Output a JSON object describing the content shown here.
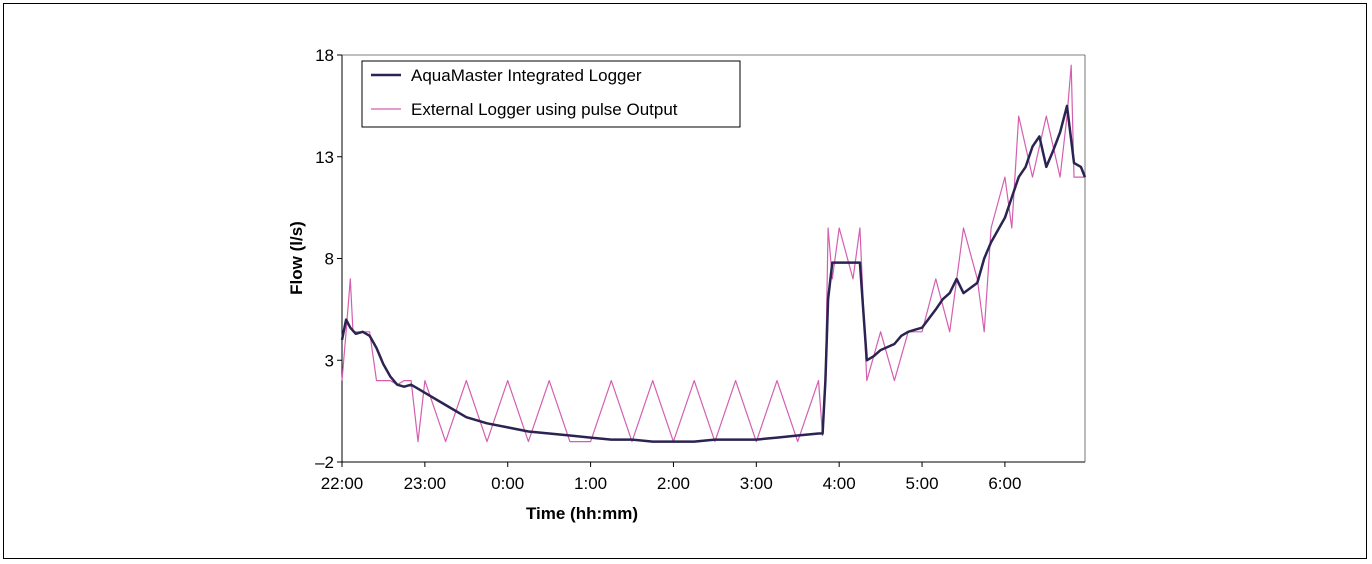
{
  "chart_data": {
    "type": "line",
    "title": "",
    "xlabel": "Time (hh:mm)",
    "ylabel": "Flow (l/s)",
    "xlim": [
      "22:00",
      "6:58"
    ],
    "ylim": [
      -2,
      18
    ],
    "x_ticks": [
      "22:00",
      "23:00",
      "0:00",
      "1:00",
      "2:00",
      "3:00",
      "4:00",
      "5:00",
      "6:00"
    ],
    "y_ticks": [
      "–2",
      "3",
      "8",
      "13",
      "18"
    ],
    "grid": false,
    "legend_position": "top-left",
    "colors": {
      "integrated": "#2b2452",
      "external": "#d45fb0"
    },
    "series": [
      {
        "name": "AquaMaster Integrated Logger",
        "x": [
          "22:00",
          "22:03",
          "22:06",
          "22:10",
          "22:15",
          "22:20",
          "22:25",
          "22:30",
          "22:35",
          "22:40",
          "22:45",
          "22:50",
          "22:55",
          "23:00",
          "23:15",
          "23:30",
          "23:45",
          "0:00",
          "0:15",
          "0:30",
          "0:45",
          "1:00",
          "1:15",
          "1:30",
          "1:45",
          "2:00",
          "2:15",
          "2:30",
          "2:45",
          "3:00",
          "3:15",
          "3:30",
          "3:45",
          "3:48",
          "3:50",
          "3:52",
          "3:55",
          "4:00",
          "4:10",
          "4:15",
          "4:20",
          "4:25",
          "4:30",
          "4:40",
          "4:45",
          "4:50",
          "4:55",
          "5:00",
          "5:10",
          "5:15",
          "5:20",
          "5:25",
          "5:30",
          "5:40",
          "5:45",
          "5:50",
          "6:00",
          "6:05",
          "6:10",
          "6:15",
          "6:20",
          "6:25",
          "6:30",
          "6:35",
          "6:40",
          "6:45",
          "6:50",
          "6:55",
          "6:58"
        ],
        "values": [
          4.0,
          5.0,
          4.6,
          4.3,
          4.4,
          4.2,
          3.6,
          2.8,
          2.2,
          1.8,
          1.7,
          1.8,
          1.6,
          1.4,
          0.8,
          0.2,
          -0.1,
          -0.3,
          -0.5,
          -0.6,
          -0.7,
          -0.8,
          -0.9,
          -0.9,
          -1.0,
          -1.0,
          -1.0,
          -0.9,
          -0.9,
          -0.9,
          -0.8,
          -0.7,
          -0.6,
          -0.6,
          2.0,
          6.0,
          7.8,
          7.8,
          7.8,
          7.8,
          3.0,
          3.2,
          3.5,
          3.8,
          4.2,
          4.4,
          4.5,
          4.6,
          5.5,
          6.0,
          6.3,
          7.0,
          6.3,
          6.8,
          8.0,
          8.8,
          10.0,
          11.0,
          12.0,
          12.5,
          13.5,
          14.0,
          12.5,
          13.3,
          14.2,
          15.5,
          12.7,
          12.5,
          12.0
        ]
      },
      {
        "name": "External Logger using pulse Output",
        "x": [
          "22:00",
          "22:03",
          "22:06",
          "22:08",
          "22:10",
          "22:20",
          "22:25",
          "22:30",
          "22:35",
          "22:40",
          "22:45",
          "22:50",
          "22:55",
          "23:00",
          "23:15",
          "23:30",
          "23:45",
          "0:00",
          "0:15",
          "0:30",
          "0:45",
          "1:00",
          "1:15",
          "1:30",
          "1:45",
          "2:00",
          "2:15",
          "2:30",
          "2:45",
          "3:00",
          "3:15",
          "3:30",
          "3:45",
          "3:48",
          "3:50",
          "3:52",
          "3:55",
          "4:00",
          "4:10",
          "4:15",
          "4:20",
          "4:30",
          "4:40",
          "4:50",
          "5:00",
          "5:10",
          "5:20",
          "5:30",
          "5:40",
          "5:45",
          "5:50",
          "6:00",
          "6:05",
          "6:10",
          "6:20",
          "6:30",
          "6:40",
          "6:45",
          "6:48",
          "6:50",
          "6:55",
          "6:58"
        ],
        "values": [
          2.0,
          4.4,
          7.0,
          4.4,
          4.4,
          4.4,
          2.0,
          2.0,
          2.0,
          1.8,
          2.0,
          2.0,
          -1.0,
          2.0,
          -1.0,
          2.0,
          -1.0,
          2.0,
          -1.0,
          2.0,
          -1.0,
          -1.0,
          2.0,
          -1.0,
          2.0,
          -1.0,
          2.0,
          -1.0,
          2.0,
          -1.0,
          2.0,
          -1.0,
          2.0,
          -0.7,
          2.0,
          9.5,
          7.0,
          9.5,
          7.0,
          9.5,
          2.0,
          4.4,
          2.0,
          4.4,
          4.4,
          7.0,
          4.4,
          9.5,
          7.0,
          4.4,
          9.5,
          12.0,
          9.5,
          15.0,
          12.0,
          15.0,
          12.0,
          15.0,
          17.5,
          12.0,
          12.0,
          12.0
        ]
      }
    ]
  }
}
